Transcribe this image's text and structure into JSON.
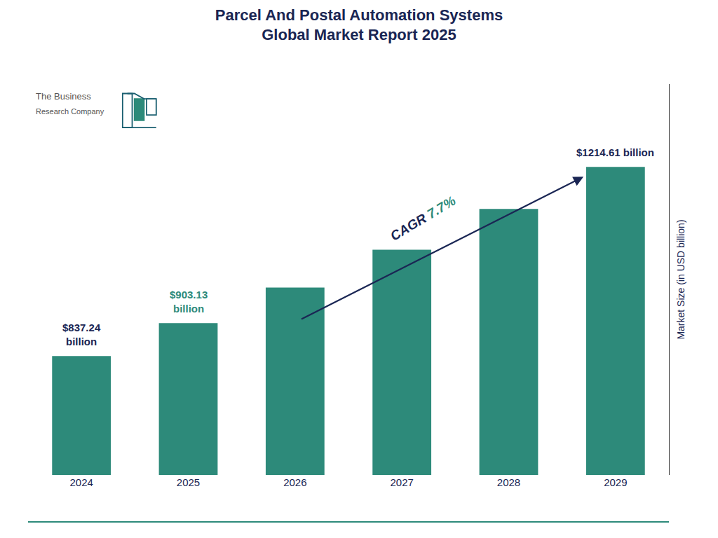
{
  "chart_data": {
    "type": "bar",
    "title": {
      "text": "Parcel And Postal Automation Systems\nGlobal Market Report 2025",
      "color": "#1a2654"
    },
    "categories": [
      "2024",
      "2025",
      "2026",
      "2027",
      "2028",
      "2029"
    ],
    "values": [
      837.24,
      903.13,
      974.0,
      1049.5,
      1131.0,
      1214.61
    ],
    "color": "#2d8a7a",
    "background_color": "#ffffff",
    "x_tick_color": "#1a2654",
    "ylabel": {
      "text": "Market Size (in USD billion)",
      "color": "#1a2654"
    },
    "ylim": [
      600,
      1380
    ],
    "tick_labels": "x",
    "grid": false,
    "annotations": [
      {
        "text": "$837.24\nbillion",
        "category": "2024",
        "color": "#1a2654"
      },
      {
        "text": "$903.13\nbillion",
        "category": "2025",
        "color": "#2d8a7a"
      },
      {
        "text": "$1214.61 billion",
        "category": "2029",
        "color": "#1a2654"
      }
    ],
    "cagr": {
      "parts": [
        {
          "text": "CAGR ",
          "color": "#1a2654"
        },
        {
          "text": "7.7%",
          "color": "#2d8a7a"
        }
      ],
      "arrow_color": "#1a2654"
    },
    "logo": {
      "lines": [
        "The Business",
        "Research Company"
      ],
      "color": "#555555",
      "outline_color": "#1a5f70",
      "fill_color": "#2d8a7a"
    },
    "bottom_line_color": "#2d8a7a"
  }
}
